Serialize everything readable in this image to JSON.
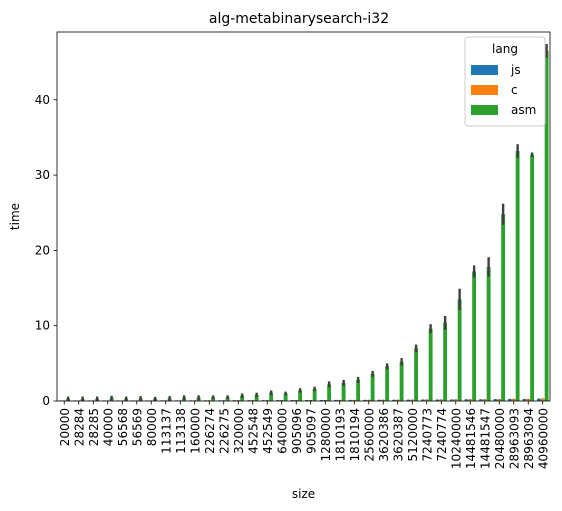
{
  "chart_data": {
    "type": "bar",
    "title": "alg-metabinarysearch-i32",
    "xlabel": "size",
    "ylabel": "time",
    "ylim": [
      0,
      49
    ],
    "yticks": [
      0,
      10,
      20,
      30,
      40
    ],
    "grid": false,
    "legend": {
      "title": "lang",
      "placement": "top-right"
    },
    "categories": [
      "20000",
      "28284",
      "28285",
      "40000",
      "56568",
      "56569",
      "80000",
      "113137",
      "113138",
      "160000",
      "226274",
      "226275",
      "320000",
      "452548",
      "452549",
      "640000",
      "905096",
      "905097",
      "1280000",
      "1810193",
      "1810194",
      "2560000",
      "3620386",
      "3620387",
      "5120000",
      "7240773",
      "7240774",
      "10240000",
      "14481546",
      "14481547",
      "20480000",
      "28963093",
      "28963094",
      "40960000"
    ],
    "series": [
      {
        "name": "js",
        "color": "#1f77b4",
        "values": [
          0.05,
          0.05,
          0.05,
          0.05,
          0.05,
          0.05,
          0.05,
          0.06,
          0.06,
          0.06,
          0.07,
          0.07,
          0.08,
          0.08,
          0.08,
          0.09,
          0.1,
          0.1,
          0.1,
          0.12,
          0.12,
          0.13,
          0.14,
          0.14,
          0.15,
          0.17,
          0.17,
          0.18,
          0.2,
          0.2,
          0.22,
          0.25,
          0.25,
          0.3
        ],
        "errors": [
          0.03,
          0.03,
          0.03,
          0.03,
          0.03,
          0.03,
          0.03,
          0.03,
          0.03,
          0.03,
          0.03,
          0.03,
          0.03,
          0.03,
          0.03,
          0.03,
          0.03,
          0.03,
          0.03,
          0.03,
          0.03,
          0.03,
          0.03,
          0.03,
          0.03,
          0.03,
          0.03,
          0.03,
          0.03,
          0.03,
          0.03,
          0.03,
          0.03,
          0.03
        ]
      },
      {
        "name": "c",
        "color": "#ff7f0e",
        "values": [
          0.05,
          0.05,
          0.05,
          0.05,
          0.05,
          0.05,
          0.05,
          0.06,
          0.06,
          0.06,
          0.07,
          0.07,
          0.08,
          0.08,
          0.08,
          0.09,
          0.1,
          0.1,
          0.1,
          0.12,
          0.12,
          0.13,
          0.14,
          0.14,
          0.15,
          0.17,
          0.17,
          0.18,
          0.2,
          0.2,
          0.22,
          0.25,
          0.25,
          0.3
        ],
        "errors": [
          0.03,
          0.03,
          0.03,
          0.03,
          0.03,
          0.03,
          0.03,
          0.03,
          0.03,
          0.03,
          0.03,
          0.03,
          0.03,
          0.03,
          0.03,
          0.03,
          0.03,
          0.03,
          0.03,
          0.03,
          0.03,
          0.03,
          0.03,
          0.03,
          0.03,
          0.03,
          0.03,
          0.03,
          0.03,
          0.03,
          0.03,
          0.03,
          0.03,
          0.03
        ]
      },
      {
        "name": "asm",
        "color": "#2ca02c",
        "values": [
          0.3,
          0.3,
          0.3,
          0.4,
          0.3,
          0.35,
          0.3,
          0.35,
          0.45,
          0.45,
          0.5,
          0.5,
          0.7,
          0.8,
          1.1,
          1.0,
          1.4,
          1.6,
          2.2,
          2.4,
          2.8,
          3.6,
          4.6,
          5.2,
          7.0,
          9.6,
          10.4,
          13.5,
          17.2,
          17.8,
          24.8,
          33.2,
          32.7,
          46.5
        ],
        "errors": [
          0.3,
          0.3,
          0.3,
          0.3,
          0.3,
          0.3,
          0.25,
          0.3,
          0.3,
          0.3,
          0.25,
          0.25,
          0.3,
          0.3,
          0.3,
          0.25,
          0.3,
          0.3,
          0.4,
          0.4,
          0.4,
          0.4,
          0.4,
          0.5,
          0.5,
          0.6,
          0.9,
          1.4,
          0.8,
          1.3,
          1.4,
          0.9,
          0.3,
          0.9
        ]
      }
    ]
  }
}
